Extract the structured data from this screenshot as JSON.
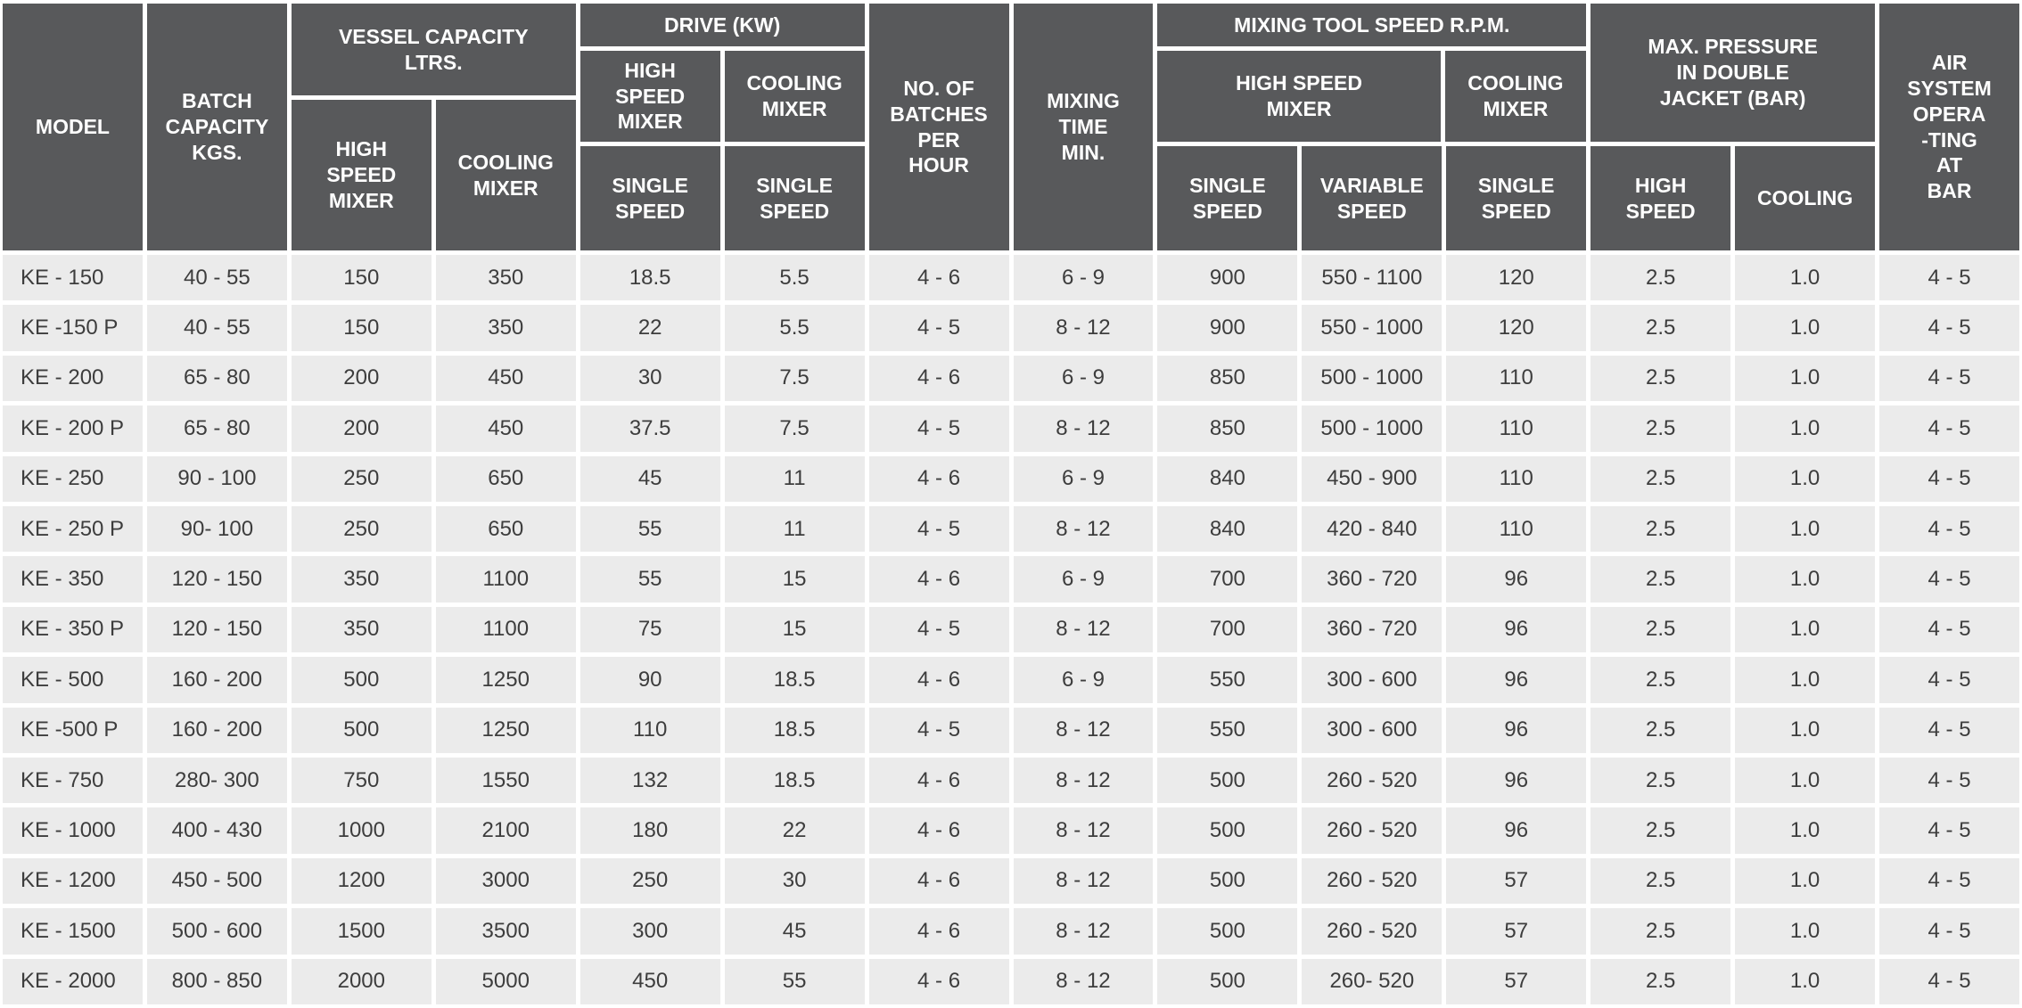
{
  "header": {
    "model": "MODEL",
    "batch_capacity": "BATCH\nCAPACITY\nKGS.",
    "vessel_group": "VESSEL CAPACITY\nLTRS.",
    "vessel_high_speed_mixer": "HIGH\nSPEED\nMIXER",
    "vessel_cooling_mixer": "COOLING\nMIXER",
    "drive_group": "DRIVE (KW)",
    "drive_high_speed_mixer": "HIGH\nSPEED\nMIXER",
    "drive_cooling_mixer": "COOLING\nMIXER",
    "drive_high_speed_single": "SINGLE\nSPEED",
    "drive_cooling_single": "SINGLE\nSPEED",
    "batches_per_hour": "NO. OF\nBATCHES\nPER\nHOUR",
    "mixing_time": "MIXING\nTIME\nMIN.",
    "rpm_group": "MIXING TOOL SPEED R.P.M.",
    "rpm_high_speed_mixer": "HIGH SPEED\nMIXER",
    "rpm_cooling_mixer": "COOLING\nMIXER",
    "rpm_single_speed": "SINGLE\nSPEED",
    "rpm_variable_speed": "VARIABLE\nSPEED",
    "rpm_cooling_single_speed": "SINGLE\nSPEED",
    "pressure_group": "MAX. PRESSURE\nIN DOUBLE\nJACKET (BAR)",
    "pressure_high_speed": "HIGH\nSPEED",
    "pressure_cooling": "COOLING",
    "air_system": "AIR\nSYSTEM\nOPERA\n-TING\nAT\nBAR"
  },
  "rows": [
    [
      "KE - 150",
      "40 - 55",
      "150",
      "350",
      "18.5",
      "5.5",
      "4 - 6",
      "6 - 9",
      "900",
      "550 - 1100",
      "120",
      "2.5",
      "1.0",
      "4 - 5"
    ],
    [
      "KE -150 P",
      "40 - 55",
      "150",
      "350",
      "22",
      "5.5",
      "4 - 5",
      "8 - 12",
      "900",
      "550 - 1000",
      "120",
      "2.5",
      "1.0",
      "4 - 5"
    ],
    [
      "KE - 200",
      "65 - 80",
      "200",
      "450",
      "30",
      "7.5",
      "4 - 6",
      "6 - 9",
      "850",
      "500 - 1000",
      "110",
      "2.5",
      "1.0",
      "4 - 5"
    ],
    [
      "KE - 200 P",
      "65 - 80",
      "200",
      "450",
      "37.5",
      "7.5",
      "4 - 5",
      "8 - 12",
      "850",
      "500 - 1000",
      "110",
      "2.5",
      "1.0",
      "4 - 5"
    ],
    [
      "KE - 250",
      "90 - 100",
      "250",
      "650",
      "45",
      "11",
      "4 - 6",
      "6 - 9",
      "840",
      "450 - 900",
      "110",
      "2.5",
      "1.0",
      "4 - 5"
    ],
    [
      "KE - 250 P",
      "90- 100",
      "250",
      "650",
      "55",
      "11",
      "4 - 5",
      "8 - 12",
      "840",
      "420 - 840",
      "110",
      "2.5",
      "1.0",
      "4 - 5"
    ],
    [
      "KE - 350",
      "120 - 150",
      "350",
      "1100",
      "55",
      "15",
      "4 - 6",
      "6 - 9",
      "700",
      "360 - 720",
      "96",
      "2.5",
      "1.0",
      "4 - 5"
    ],
    [
      "KE - 350 P",
      "120 - 150",
      "350",
      "1100",
      "75",
      "15",
      "4 - 5",
      "8 - 12",
      "700",
      "360 - 720",
      "96",
      "2.5",
      "1.0",
      "4 - 5"
    ],
    [
      "KE - 500",
      "160 - 200",
      "500",
      "1250",
      "90",
      "18.5",
      "4 - 6",
      "6 - 9",
      "550",
      "300 - 600",
      "96",
      "2.5",
      "1.0",
      "4 - 5"
    ],
    [
      "KE -500 P",
      "160 - 200",
      "500",
      "1250",
      "110",
      "18.5",
      "4 - 5",
      "8 - 12",
      "550",
      "300 - 600",
      "96",
      "2.5",
      "1.0",
      "4 - 5"
    ],
    [
      "KE - 750",
      "280- 300",
      "750",
      "1550",
      "132",
      "18.5",
      "4 - 6",
      "8 - 12",
      "500",
      "260 - 520",
      "96",
      "2.5",
      "1.0",
      "4 - 5"
    ],
    [
      "KE - 1000",
      "400 - 430",
      "1000",
      "2100",
      "180",
      "22",
      "4 - 6",
      "8 - 12",
      "500",
      "260 - 520",
      "96",
      "2.5",
      "1.0",
      "4 - 5"
    ],
    [
      "KE - 1200",
      "450 - 500",
      "1200",
      "3000",
      "250",
      "30",
      "4 - 6",
      "8 - 12",
      "500",
      "260 - 520",
      "57",
      "2.5",
      "1.0",
      "4 - 5"
    ],
    [
      "KE - 1500",
      "500 - 600",
      "1500",
      "3500",
      "300",
      "45",
      "4 - 6",
      "8 - 12",
      "500",
      "260 - 520",
      "57",
      "2.5",
      "1.0",
      "4 - 5"
    ],
    [
      "KE - 2000",
      "800 - 850",
      "2000",
      "5000",
      "450",
      "55",
      "4 - 6",
      "8 - 12",
      "500",
      "260- 520",
      "57",
      "2.5",
      "1.0",
      "4 - 5"
    ]
  ],
  "colors": {
    "header_bg": "#58595b",
    "header_text": "#ffffff",
    "cell_bg": "#ebebeb",
    "cell_text": "#3d3d3d",
    "grid_lines": "#ffffff"
  }
}
